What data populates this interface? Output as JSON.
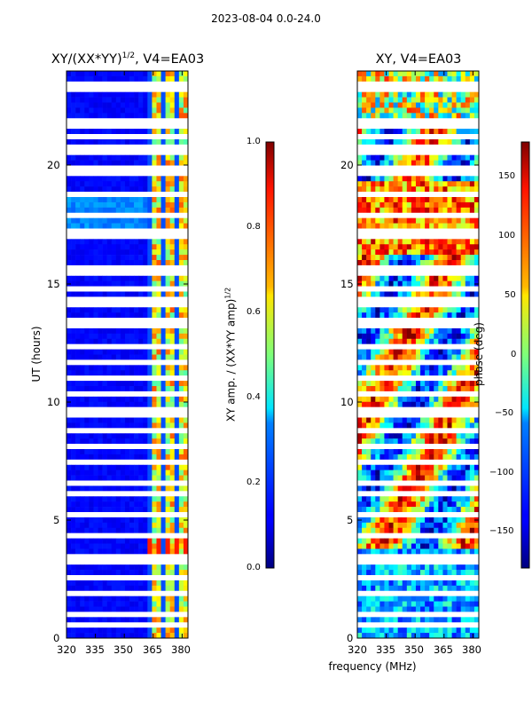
{
  "suptitle": "2023-08-04 0.0-24.0",
  "panels": {
    "left": {
      "title_main": "XY/(XX*YY)",
      "title_sup": "1/2",
      "title_tail": ", V4=EA03",
      "ylabel": "UT (hours)"
    },
    "right": {
      "title": "XY, V4=EA03",
      "xlabel": "frequency (MHz)"
    }
  },
  "colorbars": {
    "left": {
      "label": "XY amp. / (XX*YY amp)",
      "label_sup": "1/2",
      "ticks": [
        "1.0",
        "0.8",
        "0.6",
        "0.4",
        "0.2",
        "0.0"
      ]
    },
    "right": {
      "label": "phase (deg)",
      "ticks": [
        "150",
        "100",
        "50",
        "0",
        "−50",
        "−100",
        "−150"
      ]
    }
  },
  "chart_data": [
    {
      "type": "heatmap",
      "title": "XY/(XX*YY)^1/2, V4=EA03",
      "xlabel": "",
      "ylabel": "UT (hours)",
      "x_ticks": [
        "320",
        "335",
        "350",
        "365",
        "380"
      ],
      "y_ticks": [
        "0",
        "5",
        "10",
        "15",
        "20"
      ],
      "xlim": [
        320,
        383
      ],
      "ylim": [
        0,
        24
      ],
      "colorbar": {
        "label": "XY amp. / (XX*YY amp)^1/2",
        "range": [
          0.0,
          1.0
        ]
      },
      "colormap": "jet"
    },
    {
      "type": "heatmap",
      "title": "XY, V4=EA03",
      "xlabel": "frequency (MHz)",
      "ylabel": "",
      "x_ticks": [
        "320",
        "335",
        "350",
        "365",
        "380"
      ],
      "y_ticks": [
        "0",
        "5",
        "10",
        "15",
        "20"
      ],
      "xlim": [
        320,
        383
      ],
      "ylim": [
        0,
        24
      ],
      "colorbar": {
        "label": "phase (deg)",
        "range": [
          -180,
          180
        ]
      },
      "colormap": "jet"
    }
  ]
}
